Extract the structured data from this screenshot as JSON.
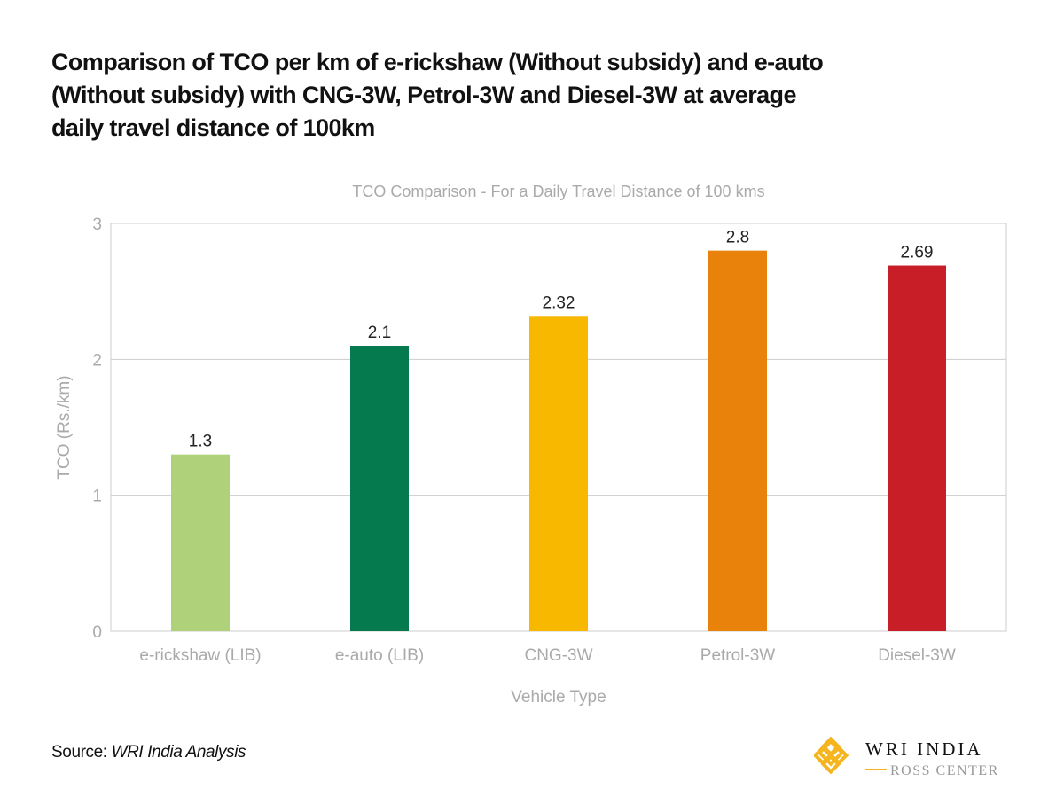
{
  "title": "Comparison of TCO per km of e-rickshaw (Without subsidy) and e-auto (Without subsidy) with CNG-3W, Petrol-3W and Diesel-3W at average daily travel distance of 100km",
  "source": {
    "label": "Source:",
    "value": "WRI India Analysis"
  },
  "logo": {
    "line1": "WRI INDIA",
    "line2": "ROSS CENTER",
    "color": "#F5B51E"
  },
  "chart_data": {
    "type": "bar",
    "title": "TCO Comparison - For a Daily Travel Distance of 100 kms",
    "xlabel": "Vehicle Type",
    "ylabel": "TCO (Rs./km)",
    "ylim": [
      0,
      3
    ],
    "yticks": [
      0,
      1,
      2,
      3
    ],
    "grid": true,
    "categories": [
      "e-rickshaw (LIB)",
      "e-auto (LIB)",
      "CNG-3W",
      "Petrol-3W",
      "Diesel-3W"
    ],
    "values": [
      1.3,
      2.1,
      2.32,
      2.8,
      2.69
    ],
    "data_labels": [
      "1.3",
      "2.1",
      "2.32",
      "2.8",
      "2.69"
    ],
    "colors": [
      "#AED17A",
      "#047A4E",
      "#F8B800",
      "#E8820A",
      "#C81E27"
    ]
  }
}
